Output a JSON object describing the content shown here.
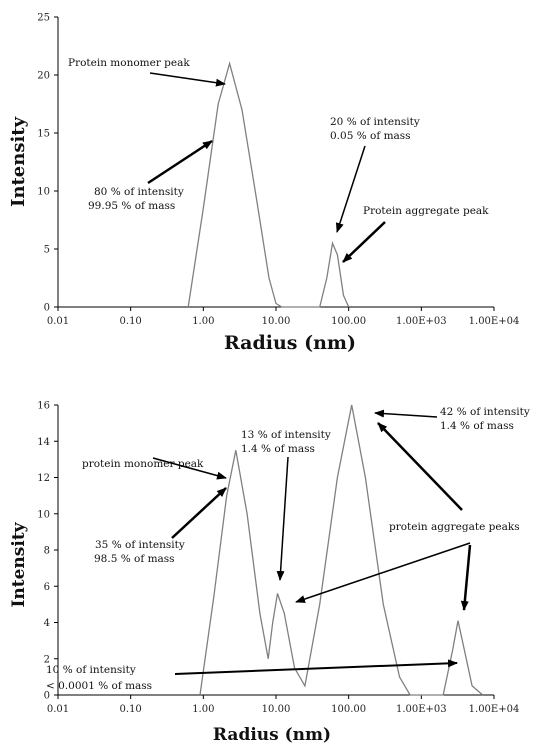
{
  "chart_data": [
    {
      "type": "line",
      "xscale": "log",
      "xlim": [
        0.01,
        10000
      ],
      "ylim": [
        0,
        25
      ],
      "xticks": [
        "0.01",
        "0.10",
        "1.00",
        "10.00",
        "100.00",
        "1.00E+03",
        "1.00E+04"
      ],
      "yticks": [
        "0",
        "5",
        "10",
        "15",
        "20",
        "25"
      ],
      "xlabel": "Radius (nm)",
      "ylabel": "Intensity",
      "grid": false,
      "series": [
        {
          "points": [
            [
              0.62,
              0
            ],
            [
              1.0,
              8.5
            ],
            [
              1.6,
              17.5
            ],
            [
              2.3,
              21.0
            ],
            [
              3.4,
              17.0
            ],
            [
              5.5,
              9.0
            ],
            [
              8.0,
              2.5
            ],
            [
              10.0,
              0.3
            ],
            [
              12.0,
              0
            ],
            [
              40,
              0
            ],
            [
              50,
              2.5
            ],
            [
              60,
              5.5
            ],
            [
              70,
              4.5
            ],
            [
              85,
              1.0
            ],
            [
              100,
              0
            ]
          ]
        }
      ],
      "annotations": [
        {
          "text": "Protein monomer peak"
        },
        {
          "text": "20 % of intensity"
        },
        {
          "text": "0.05 % of mass"
        },
        {
          "text": "Protein aggregate peak"
        },
        {
          "text": "80 % of intensity"
        },
        {
          "text": "99.95 % of mass"
        }
      ]
    },
    {
      "type": "line",
      "xscale": "log",
      "xlim": [
        0.01,
        10000
      ],
      "ylim": [
        0,
        16
      ],
      "xticks": [
        "0.01",
        "0.10",
        "1.00",
        "10.00",
        "100.00",
        "1.00E+03",
        "1.00E+04"
      ],
      "yticks": [
        "0",
        "2",
        "4",
        "6",
        "8",
        "10",
        "12",
        "14",
        "16"
      ],
      "xlabel": "Radius (nm)",
      "ylabel": "Intensity",
      "grid": false,
      "series": [
        {
          "points": [
            [
              0.9,
              0
            ],
            [
              1.4,
              5.5
            ],
            [
              2.1,
              11.0
            ],
            [
              2.8,
              13.5
            ],
            [
              4.0,
              10.0
            ],
            [
              6.0,
              4.5
            ],
            [
              7.8,
              2.0
            ],
            [
              9.0,
              4.0
            ],
            [
              10.5,
              5.6
            ],
            [
              13.0,
              4.5
            ],
            [
              18.0,
              1.5
            ],
            [
              25.0,
              0.5
            ],
            [
              40.0,
              5.0
            ],
            [
              70.0,
              12.0
            ],
            [
              110.0,
              16.0
            ],
            [
              170.0,
              12.0
            ],
            [
              300.0,
              5.0
            ],
            [
              500.0,
              1.0
            ],
            [
              700.0,
              0
            ],
            [
              2000,
              0
            ],
            [
              2700,
              2.5
            ],
            [
              3200,
              4.1
            ],
            [
              3900,
              2.5
            ],
            [
              5000,
              0.5
            ],
            [
              7000,
              0
            ]
          ]
        }
      ],
      "annotations": [
        {
          "text": "protein monomer peak"
        },
        {
          "text": "13 % of intensity"
        },
        {
          "text": "1.4 % of mass"
        },
        {
          "text": "42 % of intensity"
        },
        {
          "text": "1.4 % of mass"
        },
        {
          "text": "protein aggregate peaks"
        },
        {
          "text": "35 % of intensity"
        },
        {
          "text": "98.5 % of mass"
        },
        {
          "text": "10 % of intensity"
        },
        {
          "text": "< 0.0001 % of mass"
        }
      ]
    }
  ]
}
